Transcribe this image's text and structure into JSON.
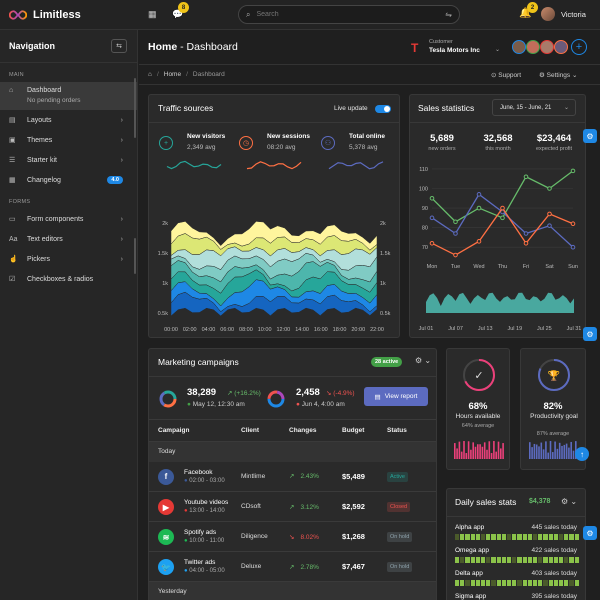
{
  "app": {
    "name": "Limitless"
  },
  "topbar": {
    "search_placeholder": "Search",
    "messages_badge": "8",
    "notifications_badge": "2",
    "user_name": "Victoria"
  },
  "sidebar": {
    "title": "Navigation",
    "section_main": "MAIN",
    "section_forms": "FORMS",
    "items": [
      {
        "label": "Dashboard",
        "sub": "No pending orders"
      },
      {
        "label": "Layouts"
      },
      {
        "label": "Themes"
      },
      {
        "label": "Starter kit"
      },
      {
        "label": "Changelog",
        "badge": "4.0"
      },
      {
        "label": "Form components"
      },
      {
        "label": "Text editors"
      },
      {
        "label": "Pickers"
      },
      {
        "label": "Checkboxes & radios"
      }
    ]
  },
  "page": {
    "title_home": "Home",
    "title_sep": " - ",
    "title_page": "Dashboard",
    "breadcrumb": [
      "Home",
      "Dashboard"
    ],
    "customer_label": "Customer",
    "customer_name": "Tesla Motors Inc",
    "support_label": "Support",
    "settings_label": "Settings"
  },
  "traffic": {
    "title": "Traffic sources",
    "live_label": "Live update",
    "stats": [
      {
        "label": "New visitors",
        "value": "2,349 avg",
        "color": "#26a69a"
      },
      {
        "label": "New sessions",
        "value": "08:20 avg",
        "color": "#ff7043"
      },
      {
        "label": "Total online",
        "value": "5,378 avg",
        "color": "#5c6bc0"
      }
    ],
    "y_ticks": [
      "2k",
      "1.5k",
      "1k",
      "0.5k"
    ],
    "x_ticks": [
      "00:00",
      "02:00",
      "04:00",
      "06:00",
      "08:00",
      "10:00",
      "12:00",
      "14:00",
      "16:00",
      "18:00",
      "20:00",
      "22:00"
    ]
  },
  "sales": {
    "title": "Sales statistics",
    "range": "June, 15 - June, 21",
    "kpis": [
      {
        "value": "5,689",
        "label": "new orders"
      },
      {
        "value": "32,568",
        "label": "this month"
      },
      {
        "value": "$23,464",
        "label": "expected profit"
      }
    ],
    "chart_data": {
      "type": "line",
      "categories": [
        "Mon",
        "Tue",
        "Wed",
        "Thu",
        "Fri",
        "Sat",
        "Sun"
      ],
      "y_ticks": [
        "110",
        "100",
        "90",
        "80",
        "70"
      ],
      "ylim": [
        65,
        112
      ],
      "series": [
        {
          "name": "green",
          "color": "#66bb6a",
          "values": [
            95,
            83,
            90,
            85,
            106,
            100,
            109
          ]
        },
        {
          "name": "blue",
          "color": "#5c6bc0",
          "values": [
            85,
            77,
            97,
            88,
            77,
            81,
            70
          ]
        },
        {
          "name": "orange",
          "color": "#ff7043",
          "values": [
            72,
            66,
            73,
            90,
            72,
            87,
            82
          ]
        }
      ]
    },
    "area_x_ticks": [
      "Jul 01",
      "Jul 07",
      "Jul 13",
      "Jul 19",
      "Jul 25",
      "Jul 31"
    ]
  },
  "marketing": {
    "title": "Marketing campaigns",
    "active_badge": "28 active",
    "stat1": {
      "value": "38,289",
      "delta": "(+16.2%)",
      "date": "May 12, 12:30 am"
    },
    "stat2": {
      "value": "2,458",
      "delta": "(-4.9%)",
      "date": "Jun 4, 4:00 am"
    },
    "view_report": "View report",
    "columns": [
      "Campaign",
      "Client",
      "Changes",
      "Budget",
      "Status"
    ],
    "group_today": "Today",
    "group_yesterday": "Yesterday",
    "rows": [
      {
        "name": "Facebook",
        "time": "02:00 - 03:00",
        "client": "Mintlime",
        "change": "2.43%",
        "budget": "$5,489",
        "status": "Active",
        "icon": "facebook-icon",
        "color": "#3b5998",
        "up": true,
        "status_color": "#26a69a"
      },
      {
        "name": "Youtube videos",
        "time": "13:00 - 14:00",
        "client": "CDsoft",
        "change": "3.12%",
        "budget": "$2,592",
        "status": "Closed",
        "icon": "youtube-icon",
        "color": "#e53935",
        "up": true,
        "status_color": "#ef5350"
      },
      {
        "name": "Spotify ads",
        "time": "10:00 - 11:00",
        "client": "Diligence",
        "change": "8.02%",
        "budget": "$1,268",
        "status": "On hold",
        "icon": "spotify-icon",
        "color": "#1db954",
        "up": false,
        "status_color": "#90a4ae"
      },
      {
        "name": "Twitter ads",
        "time": "04:00 - 05:00",
        "client": "Deluxe",
        "change": "2.78%",
        "budget": "$7,467",
        "status": "On hold",
        "icon": "twitter-icon",
        "color": "#1da1f2",
        "up": true,
        "status_color": "#90a4ae"
      }
    ]
  },
  "hours": {
    "value": "68%",
    "label": "Hours available",
    "sub": "64% average",
    "progress": 0.68,
    "color": "#ec407a"
  },
  "productivity": {
    "value": "82%",
    "label": "Productivity goal",
    "sub": "87% average",
    "progress": 0.82,
    "color": "#5c6bc0"
  },
  "daily": {
    "title": "Daily sales stats",
    "total": "$4,378",
    "apps": [
      {
        "name": "Alpha app",
        "value": "445 sales today"
      },
      {
        "name": "Omega app",
        "value": "422 sales today"
      },
      {
        "name": "Delta app",
        "value": "403 sales today"
      },
      {
        "name": "Sigma app",
        "value": "395 sales today"
      }
    ]
  }
}
